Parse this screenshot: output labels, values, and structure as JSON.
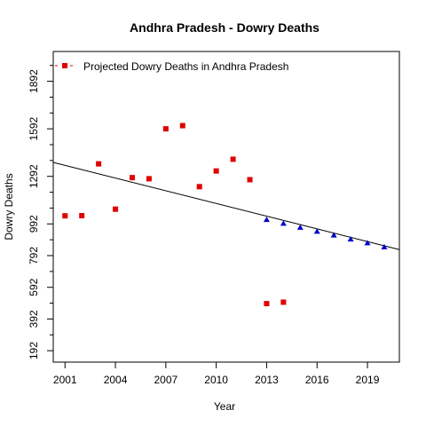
{
  "chart_data": {
    "type": "scatter",
    "title": "Andhra Pradesh  -  Dowry Deaths",
    "xlabel": "Year",
    "ylabel": "Dowry Deaths",
    "xlim": [
      2000.3,
      2020.9
    ],
    "ylim": [
      120,
      2080
    ],
    "x_ticks": [
      2001,
      2004,
      2007,
      2010,
      2013,
      2016,
      2019
    ],
    "y_ticks": [
      192,
      392,
      592,
      792,
      992,
      1292,
      1592,
      1892
    ],
    "y_minor_ticks": [
      292,
      492,
      692,
      892,
      1092,
      1192,
      1392,
      1492,
      1692,
      1792,
      1992
    ],
    "legend": {
      "label": "Projected  Dowry Deaths  in  Andhra Pradesh",
      "position": "top-left"
    },
    "series": [
      {
        "name": "Projected  Dowry Deaths  in  Andhra Pradesh",
        "kind": "observed",
        "marker": "square",
        "color": "#e00000",
        "points": [
          [
            2001,
            1043
          ],
          [
            2002,
            1044
          ],
          [
            2003,
            1371
          ],
          [
            2004,
            1085
          ],
          [
            2005,
            1284
          ],
          [
            2006,
            1277
          ],
          [
            2007,
            1592
          ],
          [
            2008,
            1612
          ],
          [
            2009,
            1227
          ],
          [
            2010,
            1326
          ],
          [
            2011,
            1400
          ],
          [
            2012,
            1271
          ],
          [
            2013,
            489
          ],
          [
            2014,
            498
          ]
        ]
      },
      {
        "kind": "projected",
        "marker": "triangle",
        "color": "#0000cc",
        "points": [
          [
            2013,
            1018
          ],
          [
            2014,
            994
          ],
          [
            2015,
            969
          ],
          [
            2016,
            944
          ],
          [
            2017,
            920
          ],
          [
            2018,
            895
          ],
          [
            2019,
            871
          ],
          [
            2020,
            846
          ]
        ]
      }
    ],
    "trend_line": {
      "color": "#000000",
      "start": [
        2000.3,
        1380
      ],
      "end": [
        2020.9,
        830
      ]
    }
  }
}
